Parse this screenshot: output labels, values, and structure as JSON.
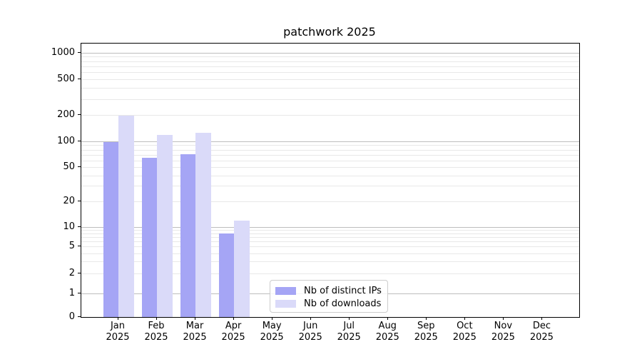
{
  "chart_data": {
    "type": "bar",
    "title": "patchwork 2025",
    "categories": [
      "Jan 2025",
      "Feb 2025",
      "Mar 2025",
      "Apr 2025",
      "May 2025",
      "Jun 2025",
      "Jul 2025",
      "Aug 2025",
      "Sep 2025",
      "Oct 2025",
      "Nov 2025",
      "Dec 2025"
    ],
    "series": [
      {
        "name": "Nb of distinct IPs",
        "color": "#a5a5f5",
        "values": [
          100,
          65,
          72,
          8,
          0,
          0,
          0,
          0,
          0,
          0,
          0,
          0
        ]
      },
      {
        "name": "Nb of downloads",
        "color": "#dadaf9",
        "values": [
          195,
          120,
          125,
          12,
          0,
          0,
          0,
          0,
          0,
          0,
          0,
          0
        ]
      }
    ],
    "yscale": "symlog",
    "yticks": [
      1000,
      500,
      200,
      100,
      50,
      20,
      10,
      5,
      2,
      1,
      0
    ],
    "ylim": [
      0,
      1300
    ],
    "xlabel": "",
    "ylabel": "",
    "grid": true,
    "legend_position": "lower-center-inside",
    "colors": {
      "major_gridline": "#bdbdbd",
      "minor_gridline": "#e8e8e8",
      "axis_spine": "#000000",
      "tick_text": "#000000",
      "legend_border": "#cccccc",
      "background": "#ffffff"
    }
  }
}
